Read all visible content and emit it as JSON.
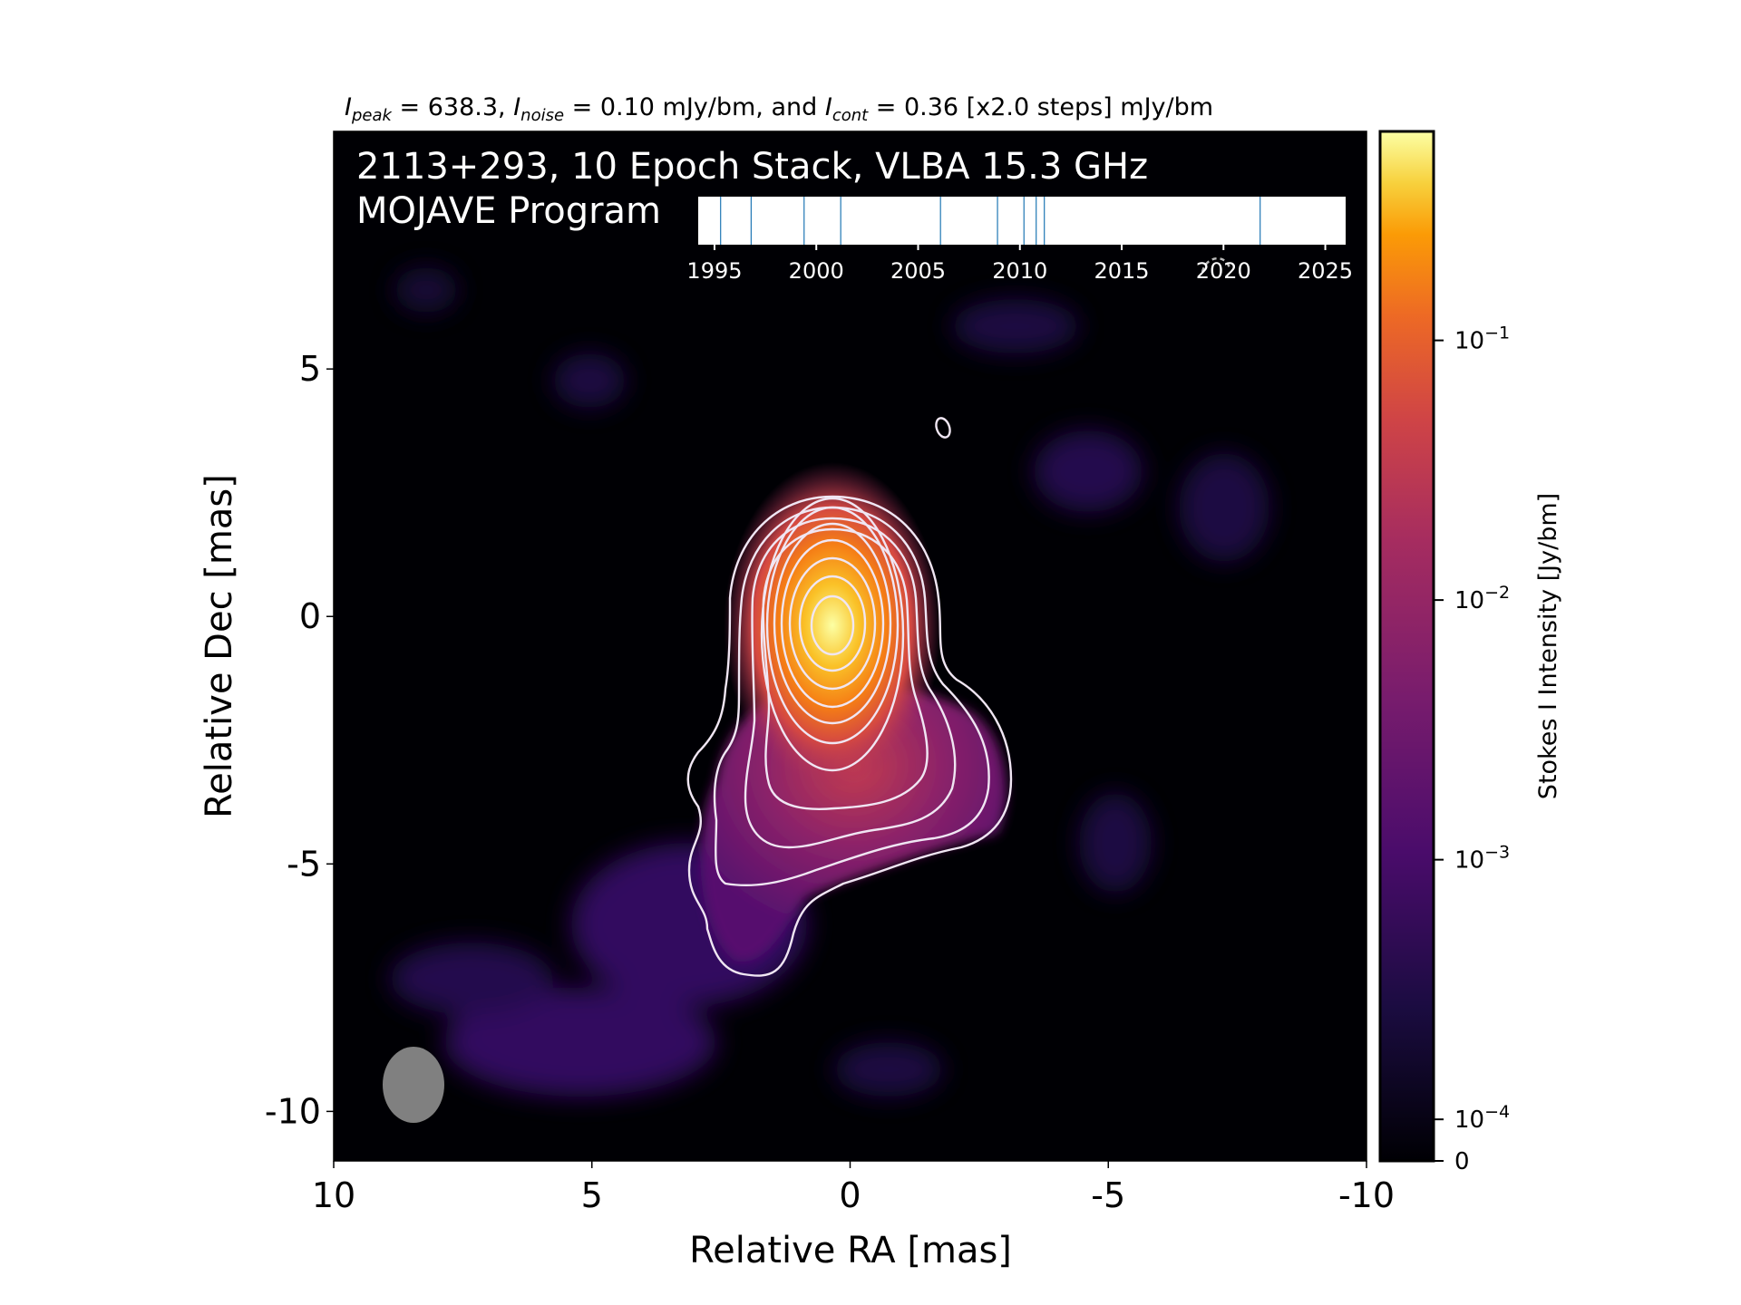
{
  "header": {
    "peak_sym": "I",
    "peak_sub": "peak",
    "peak_text": " = 638.3, ",
    "noise_sym": "I",
    "noise_sub": "noise",
    "noise_text": " = 0.10 mJy/bm, and ",
    "cont_sym": "I",
    "cont_sub": "cont",
    "cont_text": " = 0.36 [x2.0 steps] mJy/bm"
  },
  "overlay": {
    "line1": "2113+293, 10 Epoch Stack, VLBA 15.3 GHz",
    "line2": "MOJAVE Program"
  },
  "colors": {
    "background": "#000004",
    "contour": "#f0e6f3",
    "beam": "#808080",
    "epoch_line": "#1f77b4"
  },
  "chart_data": [
    {
      "type": "heatmap",
      "title": "",
      "xlabel": "Relative RA [mas]",
      "ylabel": "Relative Dec [mas]",
      "xlim": [
        10,
        -10
      ],
      "ylim": [
        -11,
        9.8
      ],
      "x_ticks": [
        10,
        5,
        0,
        -5,
        -10
      ],
      "x_tick_labels": [
        "10",
        "5",
        "0",
        "-5",
        "-10"
      ],
      "y_ticks": [
        5,
        0,
        -5,
        -10
      ],
      "y_tick_labels": [
        "5",
        "0",
        "-5",
        "-10"
      ],
      "colormap": "inferno",
      "colorbar": {
        "label": "Stokes I Intensity [Jy/bm]",
        "scale": "log",
        "ticks": [
          0,
          0.0001,
          0.001,
          0.01,
          0.1
        ],
        "tick_labels": [
          "0",
          "10^-4",
          "10^-3",
          "10^-2",
          "10^-1"
        ],
        "max": 0.638
      },
      "peak_position": [
        0,
        -0.2
      ],
      "contour_levels_mJy": [
        0.36,
        0.72,
        1.44,
        2.88,
        5.76,
        11.52,
        23.04,
        46.08,
        92.16,
        184.32,
        368.64
      ],
      "beam": {
        "ra_center": 8.4,
        "dec_center": -9.4,
        "major_mas": 1.55,
        "minor_mas": 1.25,
        "pa_deg": 0
      },
      "grid": false
    },
    {
      "type": "timeline",
      "title": "",
      "x_ticks": [
        1995,
        2000,
        2005,
        2010,
        2015,
        2020,
        2025
      ],
      "x_tick_labels": [
        "1995",
        "2000",
        "2005",
        "2010",
        "2015",
        "2020",
        "2025"
      ],
      "xlim": [
        1994.2,
        2026
      ],
      "epochs": [
        1995.3,
        1996.8,
        1999.4,
        2001.2,
        2006.1,
        2008.9,
        2010.2,
        2010.8,
        2011.2,
        2021.8
      ]
    }
  ]
}
